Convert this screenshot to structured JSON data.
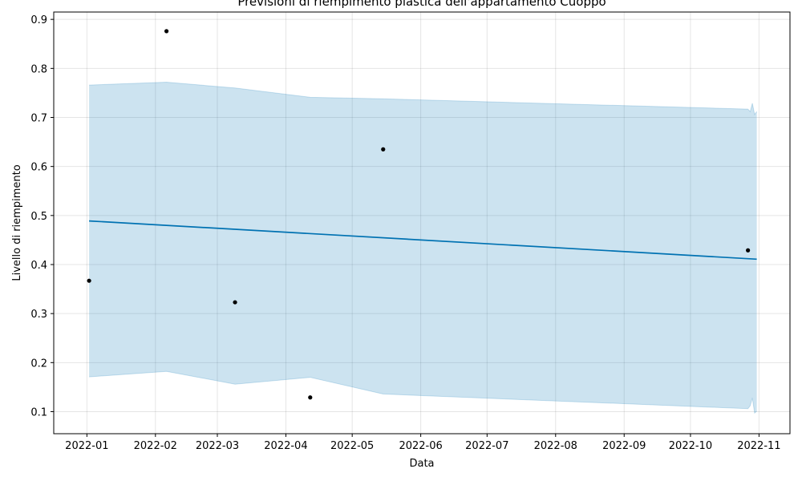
{
  "chart_data": {
    "type": "line",
    "title": "Previsioni di riempimento plastica dell'appartamento Cuoppo",
    "xlabel": "Data",
    "ylabel": "Livello di riempimento",
    "x_ticks": [
      "2022-01",
      "2022-02",
      "2022-03",
      "2022-04",
      "2022-05",
      "2022-06",
      "2022-07",
      "2022-08",
      "2022-09",
      "2022-10",
      "2022-11"
    ],
    "y_ticks": [
      0.1,
      0.2,
      0.3,
      0.4,
      0.5,
      0.6,
      0.7,
      0.8,
      0.9
    ],
    "xlim": [
      "2021-12-17",
      "2022-11-15"
    ],
    "ylim": [
      0.055,
      0.915
    ],
    "grid": true,
    "colors": {
      "forecast": "#0072B2",
      "interval": "#0072B2",
      "observed": "#000000"
    },
    "observed": [
      {
        "x": "2022-01-02",
        "y": 0.367
      },
      {
        "x": "2022-02-06",
        "y": 0.876
      },
      {
        "x": "2022-03-09",
        "y": 0.323
      },
      {
        "x": "2022-04-12",
        "y": 0.129
      },
      {
        "x": "2022-05-15",
        "y": 0.635
      },
      {
        "x": "2022-10-27",
        "y": 0.429
      }
    ],
    "forecast": [
      {
        "x": "2022-01-02",
        "y": 0.489
      },
      {
        "x": "2022-10-31",
        "y": 0.411
      }
    ],
    "interval": [
      {
        "x": "2022-01-02",
        "upper": 0.766,
        "lower": 0.171
      },
      {
        "x": "2022-02-06",
        "upper": 0.772,
        "lower": 0.182
      },
      {
        "x": "2022-03-09",
        "upper": 0.76,
        "lower": 0.156
      },
      {
        "x": "2022-04-12",
        "upper": 0.741,
        "lower": 0.17
      },
      {
        "x": "2022-05-15",
        "upper": 0.738,
        "lower": 0.136
      },
      {
        "x": "2022-10-27",
        "upper": 0.717,
        "lower": 0.106
      },
      {
        "x": "2022-10-28",
        "upper": 0.712,
        "lower": 0.112
      },
      {
        "x": "2022-10-29",
        "upper": 0.729,
        "lower": 0.128
      },
      {
        "x": "2022-10-30",
        "upper": 0.706,
        "lower": 0.097
      },
      {
        "x": "2022-10-31",
        "upper": 0.712,
        "lower": 0.101
      }
    ]
  }
}
